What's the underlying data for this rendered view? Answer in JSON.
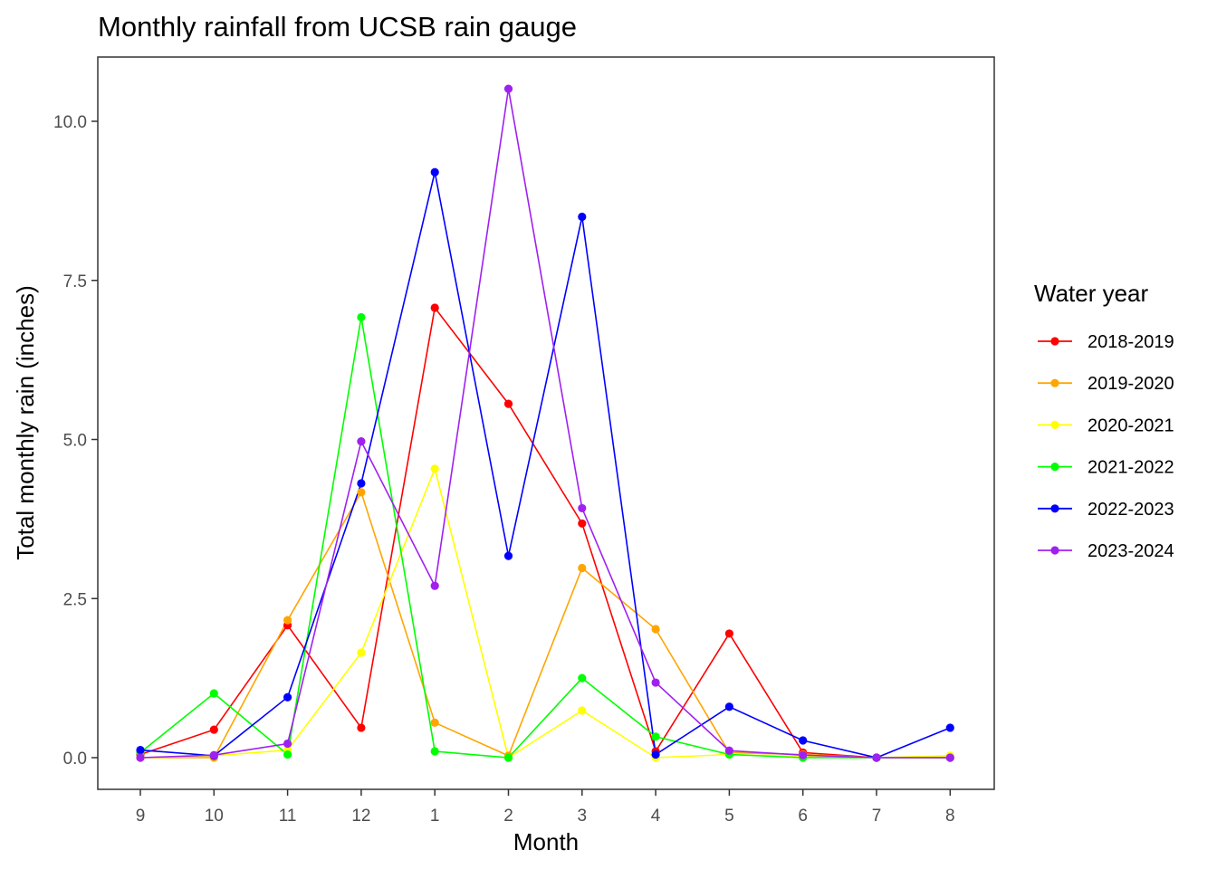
{
  "chart_data": {
    "type": "line",
    "title": "Monthly rainfall from UCSB rain gauge",
    "xlabel": "Month",
    "ylabel": "Total monthly rain (inches)",
    "categories": [
      "9",
      "10",
      "11",
      "12",
      "1",
      "2",
      "3",
      "4",
      "5",
      "6",
      "7",
      "8"
    ],
    "yticks": [
      "0.0",
      "2.5",
      "5.0",
      "7.5",
      "10.0"
    ],
    "ylim": [
      -0.5,
      11.0
    ],
    "grid": false,
    "legend_title": "Water year",
    "legend_position": "right",
    "series": [
      {
        "name": "2018-2019",
        "color": "#ff0000",
        "values": [
          0.05,
          0.44,
          2.08,
          0.47,
          7.07,
          5.56,
          3.68,
          0.1,
          1.95,
          0.08,
          0.0,
          0.0
        ]
      },
      {
        "name": "2019-2020",
        "color": "#ffa500",
        "values": [
          0.0,
          0.0,
          2.16,
          4.17,
          0.55,
          0.03,
          2.98,
          2.02,
          0.08,
          0.05,
          0.0,
          0.0
        ]
      },
      {
        "name": "2020-2021",
        "color": "#ffff00",
        "values": [
          0.0,
          0.03,
          0.12,
          1.65,
          4.54,
          0.0,
          0.74,
          0.0,
          0.05,
          0.02,
          0.0,
          0.03
        ]
      },
      {
        "name": "2021-2022",
        "color": "#00ff00",
        "values": [
          0.08,
          1.01,
          0.05,
          6.92,
          0.1,
          0.0,
          1.25,
          0.33,
          0.05,
          0.0,
          0.0,
          0.0
        ]
      },
      {
        "name": "2022-2023",
        "color": "#0000ff",
        "values": [
          0.12,
          0.03,
          0.95,
          4.31,
          9.2,
          3.17,
          8.5,
          0.05,
          0.8,
          0.27,
          0.0,
          0.47
        ]
      },
      {
        "name": "2023-2024",
        "color": "#a020f0",
        "values": [
          0.0,
          0.04,
          0.22,
          4.97,
          2.7,
          10.51,
          3.92,
          1.18,
          0.11,
          0.04,
          0.0,
          0.0
        ]
      }
    ]
  }
}
